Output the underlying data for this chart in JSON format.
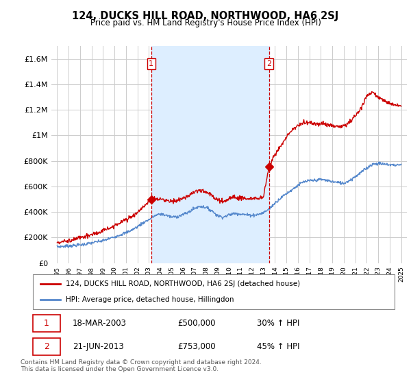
{
  "title": "124, DUCKS HILL ROAD, NORTHWOOD, HA6 2SJ",
  "subtitle": "Price paid vs. HM Land Registry's House Price Index (HPI)",
  "property_label": "124, DUCKS HILL ROAD, NORTHWOOD, HA6 2SJ (detached house)",
  "hpi_label": "HPI: Average price, detached house, Hillingdon",
  "transaction1_date": "18-MAR-2003",
  "transaction1_price": "£500,000",
  "transaction1_hpi": "30% ↑ HPI",
  "transaction2_date": "21-JUN-2013",
  "transaction2_price": "£753,000",
  "transaction2_hpi": "45% ↑ HPI",
  "footer": "Contains HM Land Registry data © Crown copyright and database right 2024.\nThis data is licensed under the Open Government Licence v3.0.",
  "property_color": "#cc0000",
  "hpi_color": "#5588cc",
  "shade_color": "#ddeeff",
  "dashed_line_color": "#cc0000",
  "background_color": "#ffffff",
  "grid_color": "#cccccc",
  "ylim": [
    0,
    1700000
  ],
  "yticks": [
    0,
    200000,
    400000,
    600000,
    800000,
    1000000,
    1200000,
    1400000,
    1600000
  ],
  "xlim_start": 1994.5,
  "xlim_end": 2025.5,
  "transaction1_x": 2003.21,
  "transaction2_x": 2013.47
}
